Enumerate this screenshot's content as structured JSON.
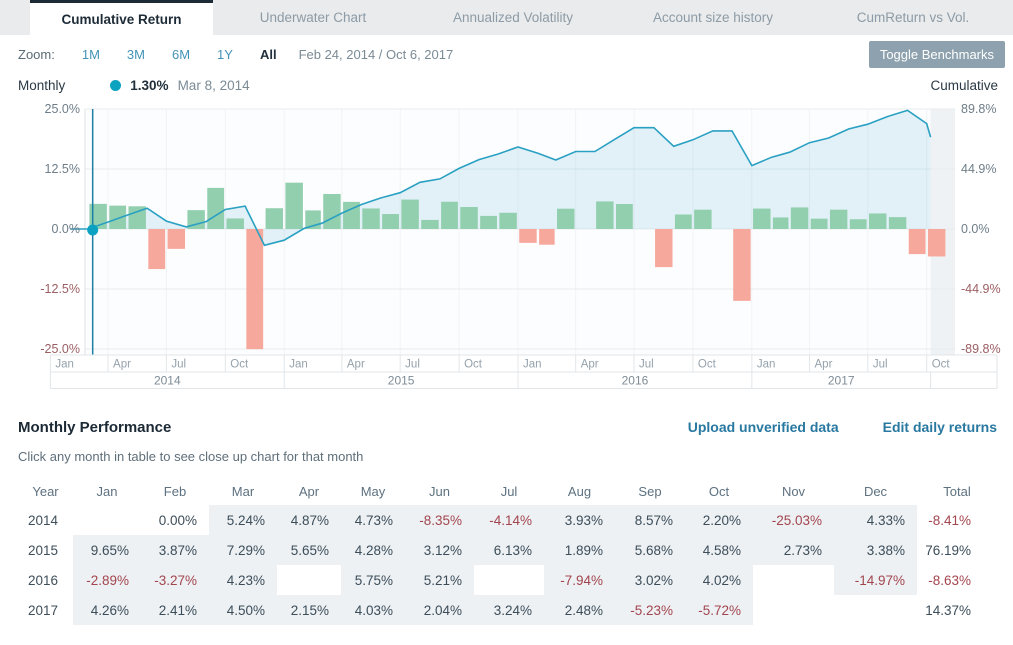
{
  "tabs": [
    {
      "label": "Cumulative Return",
      "active": true
    },
    {
      "label": "Underwater Chart",
      "active": false
    },
    {
      "label": "Annualized Volatility",
      "active": false
    },
    {
      "label": "Account size history",
      "active": false
    },
    {
      "label": "CumReturn vs Vol.",
      "active": false
    }
  ],
  "toolbar": {
    "zoom_label": "Zoom:",
    "ranges": [
      "1M",
      "3M",
      "6M",
      "1Y",
      "All"
    ],
    "active_range": "All",
    "date_range": "Feb 24, 2014 / Oct 6, 2017",
    "toggle_benchmarks_label": "Toggle Benchmarks"
  },
  "legend": {
    "series_label": "Monthly",
    "marker_value": "1.30%",
    "marker_date": "Mar 8, 2014",
    "right_label": "Cumulative"
  },
  "chart_data": {
    "type": "bar",
    "subtype": "monthly return bars + cumulative return area line",
    "left_axis": {
      "tick_labels": [
        "25.0%",
        "12.5%",
        "0.0%",
        "-12.5%",
        "-25.0%"
      ],
      "ticks_pct": [
        25,
        12.5,
        0,
        -12.5,
        -25
      ]
    },
    "right_axis": {
      "tick_labels": [
        "89.8%",
        "44.9%",
        "0.0%",
        "-44.9%",
        "-89.8%"
      ],
      "ticks_pct": [
        89.8,
        44.9,
        0,
        -44.9,
        -89.8
      ]
    },
    "x_axis": {
      "start_date": "Feb 24, 2014",
      "end_date": "Oct 6, 2017",
      "quarter_labels": [
        "Jan",
        "Apr",
        "Jul",
        "Oct"
      ],
      "years": [
        "2014",
        "2015",
        "2016",
        "2017"
      ]
    },
    "series": [
      {
        "name": "Monthly",
        "type": "column",
        "unit": "percent",
        "values_by_year": {
          "2014": [
            null,
            0.0,
            5.24,
            4.87,
            4.73,
            -8.35,
            -4.14,
            3.93,
            8.57,
            2.2,
            -25.03,
            4.33
          ],
          "2015": [
            9.65,
            3.87,
            7.29,
            5.65,
            4.28,
            3.12,
            6.13,
            1.89,
            5.68,
            4.58,
            2.73,
            3.38
          ],
          "2016": [
            -2.89,
            -3.27,
            4.23,
            null,
            5.75,
            5.21,
            null,
            -7.94,
            3.02,
            4.02,
            null,
            -14.97
          ],
          "2017": [
            4.26,
            2.41,
            4.5,
            2.15,
            4.03,
            2.04,
            3.24,
            2.48,
            -5.23,
            -5.72,
            null,
            null
          ]
        }
      },
      {
        "name": "Cumulative",
        "type": "area-line",
        "unit": "percent",
        "note": "compounded from monthly returns, ends near 68.7%"
      }
    ],
    "marker": {
      "series": "Monthly",
      "value_pct": 1.3,
      "date": "Mar 8, 2014"
    },
    "colors": {
      "bar_pos": "#92cfae",
      "bar_neg": "#f7a89d",
      "line": "#2aa0c2",
      "fill": "rgba(42,160,194,0.12)",
      "crosshair": "#1c7fa6",
      "dot": "#0aa2c0",
      "grid": "#e8ecee",
      "future_band": "#eef2f4",
      "neg_tick": "#9b5e63",
      "pos_tick": "#6e7d88"
    }
  },
  "performance": {
    "title": "Monthly Performance",
    "links": [
      "Upload unverified data",
      "Edit daily returns"
    ],
    "subtitle": "Click any month in table to see close up chart for that month",
    "table": {
      "headers": [
        "Year",
        "Jan",
        "Feb",
        "Mar",
        "Apr",
        "May",
        "Jun",
        "Jul",
        "Aug",
        "Sep",
        "Oct",
        "Nov",
        "Dec",
        "Total"
      ],
      "rows": [
        {
          "year": "2014",
          "values": [
            null,
            0.0,
            5.24,
            4.87,
            4.73,
            -8.35,
            -4.14,
            3.93,
            8.57,
            2.2,
            -25.03,
            4.33
          ],
          "filled": [
            false,
            false,
            true,
            true,
            true,
            true,
            true,
            true,
            true,
            true,
            true,
            true
          ],
          "total": -8.41
        },
        {
          "year": "2015",
          "values": [
            9.65,
            3.87,
            7.29,
            5.65,
            4.28,
            3.12,
            6.13,
            1.89,
            5.68,
            4.58,
            2.73,
            3.38
          ],
          "filled": [
            true,
            true,
            true,
            true,
            true,
            true,
            true,
            true,
            true,
            true,
            true,
            true
          ],
          "total": 76.19
        },
        {
          "year": "2016",
          "values": [
            -2.89,
            -3.27,
            4.23,
            null,
            5.75,
            5.21,
            null,
            -7.94,
            3.02,
            4.02,
            null,
            -14.97
          ],
          "filled": [
            true,
            true,
            true,
            false,
            true,
            true,
            false,
            true,
            true,
            true,
            false,
            true
          ],
          "total": -8.63
        },
        {
          "year": "2017",
          "values": [
            4.26,
            2.41,
            4.5,
            2.15,
            4.03,
            2.04,
            3.24,
            2.48,
            -5.23,
            -5.72,
            null,
            null
          ],
          "filled": [
            true,
            true,
            true,
            true,
            true,
            true,
            true,
            true,
            true,
            true,
            false,
            false
          ],
          "total": 14.37
        }
      ]
    }
  },
  "ui_colors": {
    "accent_link": "#2878a0",
    "negative_value": "#a3454e",
    "button_bg": "#8da2ae",
    "tab_bar_bg": "#e9ebec",
    "active_tab_border": "#1d2b37",
    "filled_cell_bg": "#edf1f4"
  }
}
